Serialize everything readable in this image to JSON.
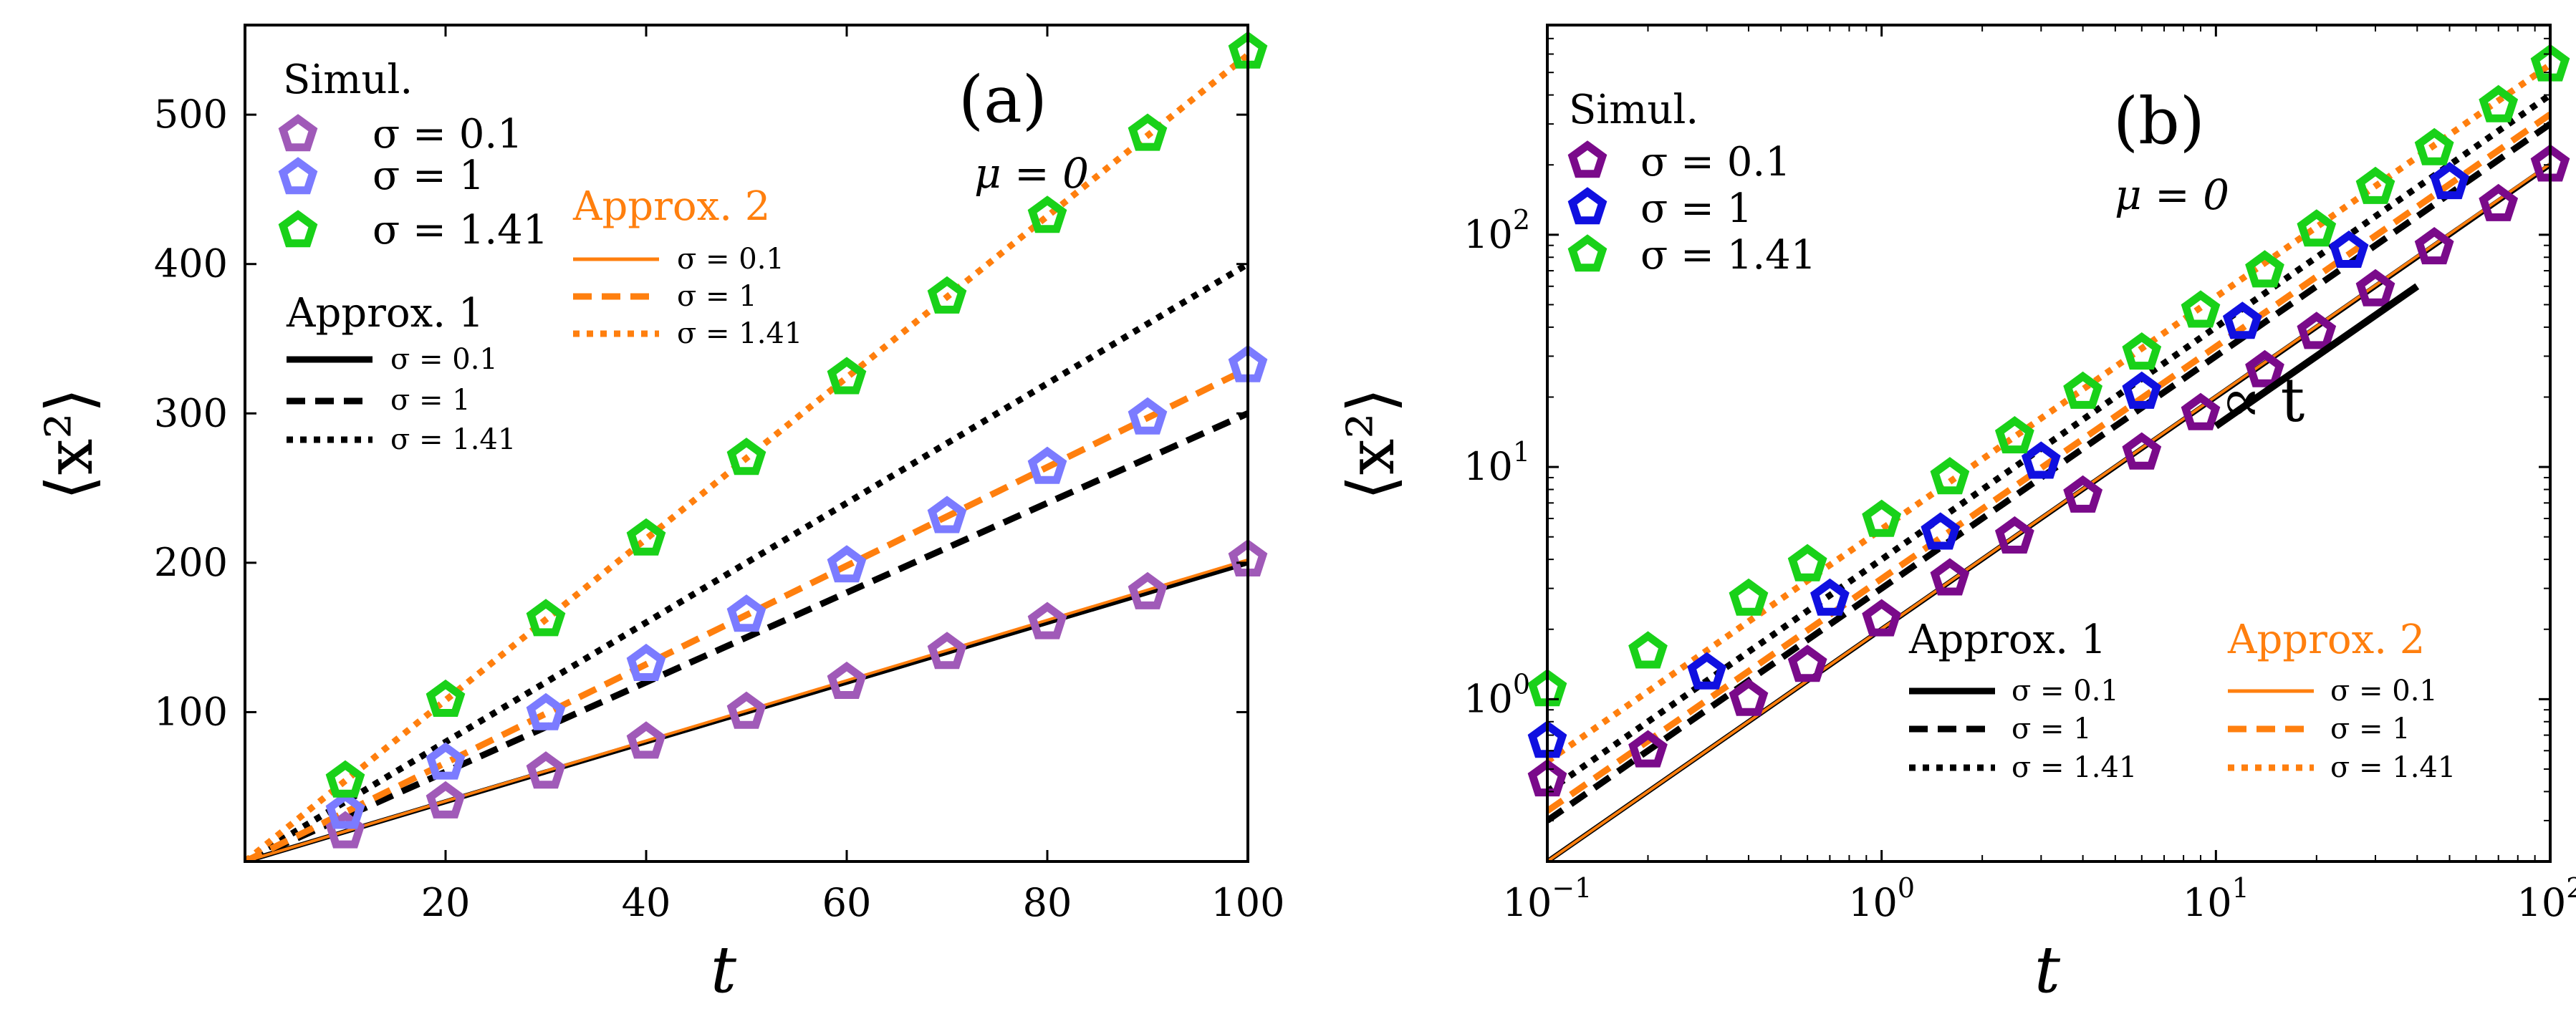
{
  "colors": {
    "simA": [
      "#a05ab8",
      "#7b7bff",
      "#19d119"
    ],
    "simB": [
      "#7a0a8a",
      "#1010e0",
      "#19d119"
    ],
    "approx1": "#000000",
    "approx2": "#ff7f0e"
  },
  "chart_data": [
    {
      "type": "line",
      "panel_label": "(a)",
      "annotation": "μ = 0",
      "xlabel": "t",
      "ylabel": "⟨x²⟩",
      "xlim": [
        0,
        100
      ],
      "ylim": [
        0,
        560
      ],
      "xticks": [
        20,
        40,
        60,
        80,
        100
      ],
      "xtick_labels": [
        "20",
        "40",
        "60",
        "80",
        "100"
      ],
      "yticks": [
        100,
        200,
        300,
        400,
        500
      ],
      "ytick_labels": [
        "100",
        "200",
        "300",
        "400",
        "500"
      ],
      "scale": "linear",
      "legend_sim_title": "Simul.",
      "legend_a1_title": "Approx. 1",
      "legend_a2_title": "Approx. 2",
      "series_labels": [
        "σ = 0.1",
        "σ = 1",
        "σ = 1.41"
      ],
      "simulation": [
        {
          "name": "σ = 0.1",
          "x": [
            10,
            20,
            30,
            40,
            50,
            60,
            70,
            80,
            90,
            100
          ],
          "y": [
            20,
            40,
            60,
            80,
            100,
            120,
            140,
            160,
            180,
            202
          ]
        },
        {
          "name": "σ = 1",
          "x": [
            10,
            20,
            30,
            40,
            50,
            60,
            70,
            80,
            90,
            100
          ],
          "y": [
            33,
            66,
            99,
            132,
            165,
            198,
            231,
            264,
            297,
            332
          ]
        },
        {
          "name": "σ = 1.41",
          "x": [
            10,
            20,
            30,
            40,
            50,
            60,
            70,
            80,
            90,
            100
          ],
          "y": [
            54,
            108,
            162,
            216,
            270,
            324,
            378,
            432,
            487,
            542
          ]
        }
      ],
      "approx1": [
        {
          "name": "σ = 0.1",
          "x": [
            0,
            100
          ],
          "y": [
            0,
            200
          ]
        },
        {
          "name": "σ = 1",
          "x": [
            0,
            100
          ],
          "y": [
            0,
            300
          ]
        },
        {
          "name": "σ = 1.41",
          "x": [
            0,
            100
          ],
          "y": [
            0,
            400
          ]
        }
      ],
      "approx2": [
        {
          "name": "σ = 0.1",
          "x": [
            0,
            100
          ],
          "y": [
            0,
            202
          ]
        },
        {
          "name": "σ = 1",
          "x": [
            0,
            100
          ],
          "y": [
            0,
            330
          ]
        },
        {
          "name": "σ = 1.41",
          "x": [
            0,
            100
          ],
          "y": [
            0,
            540
          ]
        }
      ]
    },
    {
      "type": "line",
      "panel_label": "(b)",
      "annotation": "μ = 0",
      "xlabel": "t",
      "ylabel": "⟨x²⟩",
      "scale": "log-log",
      "xlim": [
        0.1,
        100
      ],
      "ylim": [
        0.2,
        800
      ],
      "xticks": [
        0.1,
        1,
        10,
        100
      ],
      "xtick_labels": [
        [
          "10",
          "−1"
        ],
        [
          "10",
          "0"
        ],
        [
          "10",
          "1"
        ],
        [
          "10",
          "2"
        ]
      ],
      "yticks": [
        1,
        10,
        100
      ],
      "ytick_labels": [
        [
          "10",
          "0"
        ],
        [
          "10",
          "1"
        ],
        [
          "10",
          "2"
        ]
      ],
      "slope_label": "∝ t",
      "slope_line": {
        "x": [
          10,
          40
        ],
        "y": [
          15,
          60
        ]
      },
      "legend_sim_title": "Simul.",
      "legend_a1_title": "Approx. 1",
      "legend_a2_title": "Approx. 2",
      "series_labels": [
        "σ = 0.1",
        "σ = 1",
        "σ = 1.41"
      ],
      "simulation": [
        {
          "name": "σ = 0.1",
          "x": [
            0.1,
            0.2,
            0.4,
            0.6,
            1,
            1.6,
            2.5,
            4,
            6,
            9,
            14,
            20,
            30,
            45,
            70,
            100
          ],
          "y": [
            0.45,
            0.6,
            1.0,
            1.4,
            2.2,
            3.3,
            5,
            7.5,
            11.5,
            17,
            26,
            38,
            58,
            88,
            135,
            200
          ]
        },
        {
          "name": "σ = 1",
          "x": [
            0.1,
            0.3,
            0.7,
            1.5,
            3,
            6,
            12,
            25,
            50
          ],
          "y": [
            0.66,
            1.3,
            2.7,
            5.2,
            10.5,
            21,
            42,
            85,
            168
          ]
        },
        {
          "name": "σ = 1.41",
          "x": [
            0.1,
            0.2,
            0.4,
            0.6,
            1,
            1.6,
            2.5,
            4,
            6,
            9,
            14,
            20,
            30,
            45,
            70,
            100
          ],
          "y": [
            1.1,
            1.6,
            2.7,
            3.8,
            5.9,
            9,
            13.5,
            21,
            31,
            47,
            70,
            105,
            160,
            235,
            360,
            540
          ]
        }
      ],
      "approx1": [
        {
          "name": "σ = 0.1",
          "x": [
            0.1,
            100
          ],
          "y": [
            0.2,
            200
          ]
        },
        {
          "name": "σ = 1",
          "x": [
            0.1,
            100
          ],
          "y": [
            0.3,
            300
          ]
        },
        {
          "name": "σ = 1.41",
          "x": [
            0.1,
            100
          ],
          "y": [
            0.4,
            400
          ]
        }
      ],
      "approx2": [
        {
          "name": "σ = 0.1",
          "x": [
            0.1,
            100
          ],
          "y": [
            0.2,
            202
          ]
        },
        {
          "name": "σ = 1",
          "x": [
            0.1,
            100
          ],
          "y": [
            0.33,
            330
          ]
        },
        {
          "name": "σ = 1.41",
          "x": [
            0.1,
            100
          ],
          "y": [
            0.54,
            540
          ]
        }
      ]
    }
  ]
}
